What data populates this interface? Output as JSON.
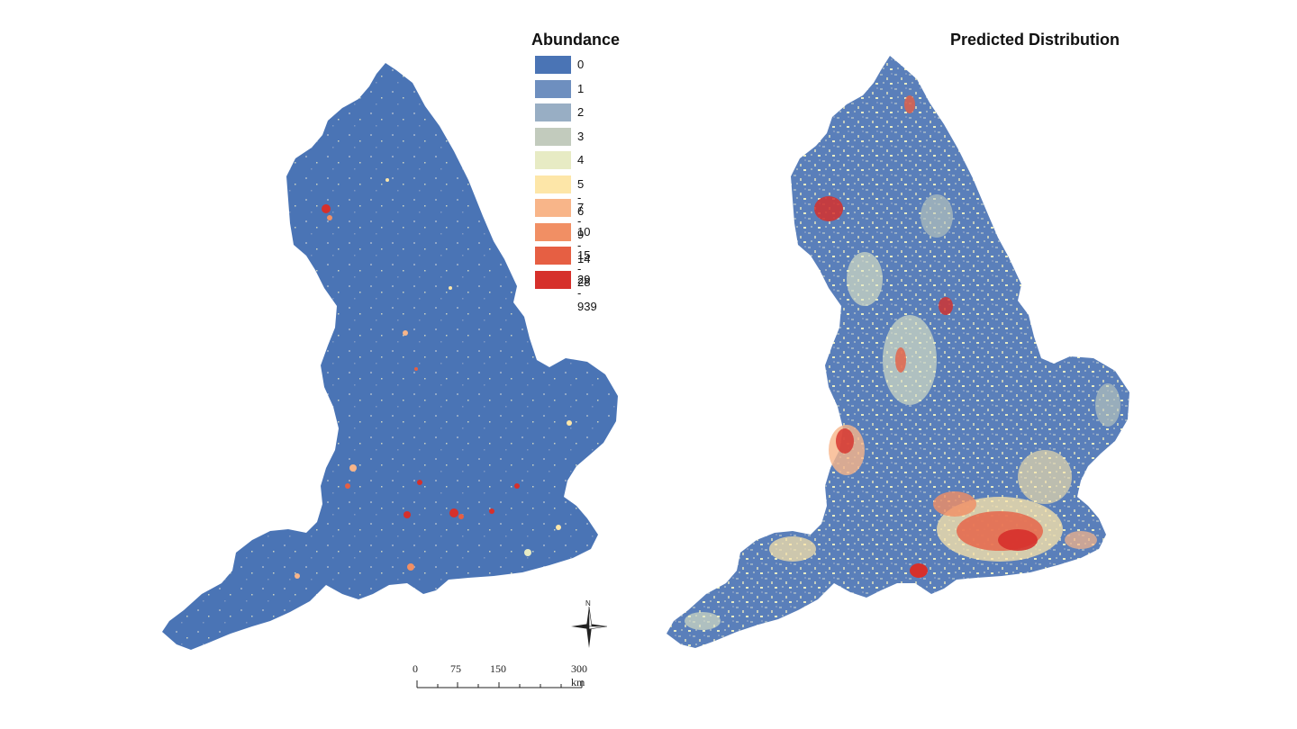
{
  "maps": {
    "left": {
      "title": "Abundance"
    },
    "right": {
      "title": "Predicted Distribution"
    }
  },
  "legend": {
    "title": "Abundance",
    "items": [
      {
        "label": "0",
        "color": "#4a74b5"
      },
      {
        "label": "1",
        "color": "#6e8fbf"
      },
      {
        "label": "2",
        "color": "#98aec4"
      },
      {
        "label": "3",
        "color": "#c2cbbd"
      },
      {
        "label": "4",
        "color": "#e7ebc4"
      },
      {
        "label": "5 - 6",
        "color": "#fde6a8"
      },
      {
        "label": "7 - 9",
        "color": "#f8b589"
      },
      {
        "label": "10 - 14",
        "color": "#f18f64"
      },
      {
        "label": "15 - 28",
        "color": "#e65f43"
      },
      {
        "label": "29 - 939",
        "color": "#d6302b"
      }
    ]
  },
  "scale": {
    "ticks": [
      "0",
      "75",
      "150",
      "300 km"
    ]
  },
  "compass": {
    "north_label": "N",
    "icon": "north-arrow-compass"
  },
  "colors": {
    "land_base": "#4a74b5",
    "hotspot": "#d6302b",
    "mid": "#f8b589",
    "light": "#e7ebc4"
  }
}
